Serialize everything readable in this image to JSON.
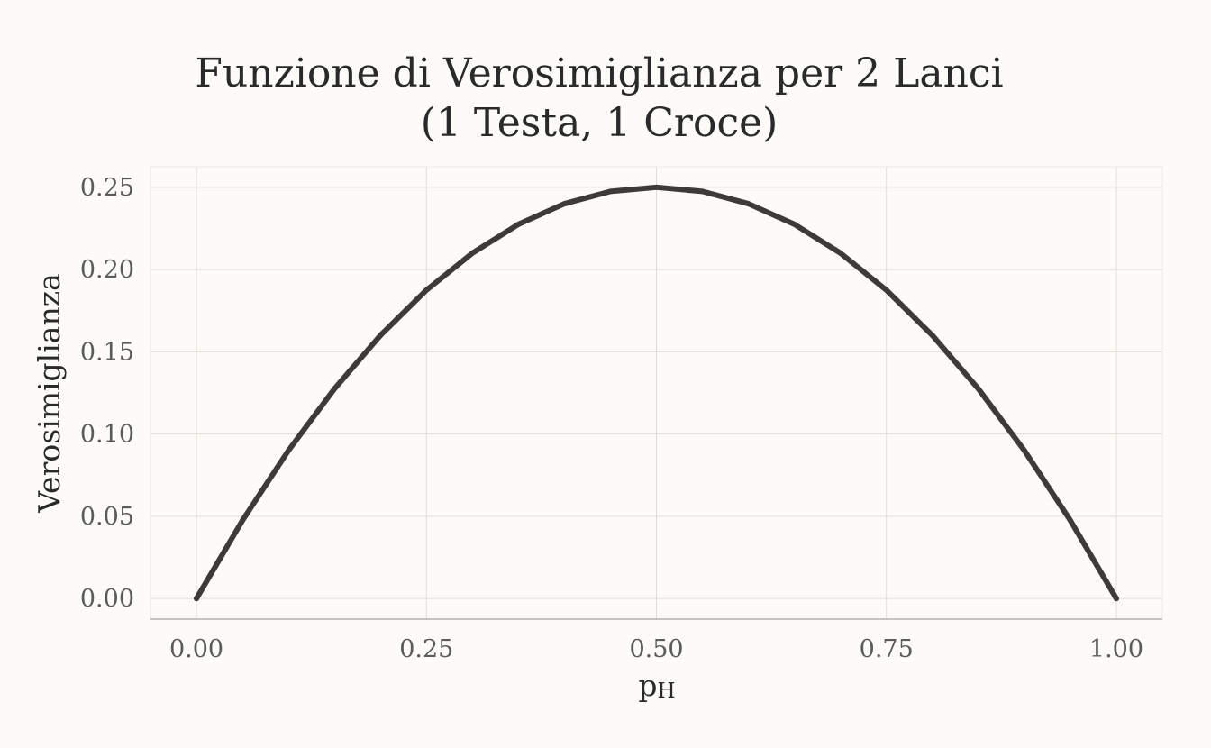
{
  "chart_data": {
    "type": "line",
    "title_lines": [
      "Funzione di Verosimiglianza per 2 Lanci",
      "(1 Testa, 1 Croce)"
    ],
    "xlabel": "p",
    "xlabel_subscript": "H",
    "ylabel": "Verosimiglianza",
    "xlim": [
      -0.05,
      1.05
    ],
    "ylim": [
      -0.0125,
      0.2625
    ],
    "x_ticks": [
      0.0,
      0.25,
      0.5,
      0.75,
      1.0
    ],
    "x_tick_labels": [
      "0.00",
      "0.25",
      "0.50",
      "0.75",
      "1.00"
    ],
    "y_ticks": [
      0.0,
      0.05,
      0.1,
      0.15,
      0.2,
      0.25
    ],
    "y_tick_labels": [
      "0.00",
      "0.05",
      "0.10",
      "0.15",
      "0.20",
      "0.25"
    ],
    "grid": true,
    "series": [
      {
        "color": "#3d3b38",
        "x": [
          0.0,
          0.05,
          0.1,
          0.15,
          0.2,
          0.25,
          0.3,
          0.35,
          0.4,
          0.45,
          0.5,
          0.55,
          0.6,
          0.65,
          0.7,
          0.75,
          0.8,
          0.85,
          0.9,
          0.95,
          1.0
        ],
        "y": [
          0.0,
          0.0475,
          0.09,
          0.1275,
          0.16,
          0.1875,
          0.21,
          0.2275,
          0.24,
          0.2475,
          0.25,
          0.2475,
          0.24,
          0.2275,
          0.21,
          0.1875,
          0.16,
          0.1275,
          0.09,
          0.0475,
          0.0
        ]
      }
    ]
  }
}
